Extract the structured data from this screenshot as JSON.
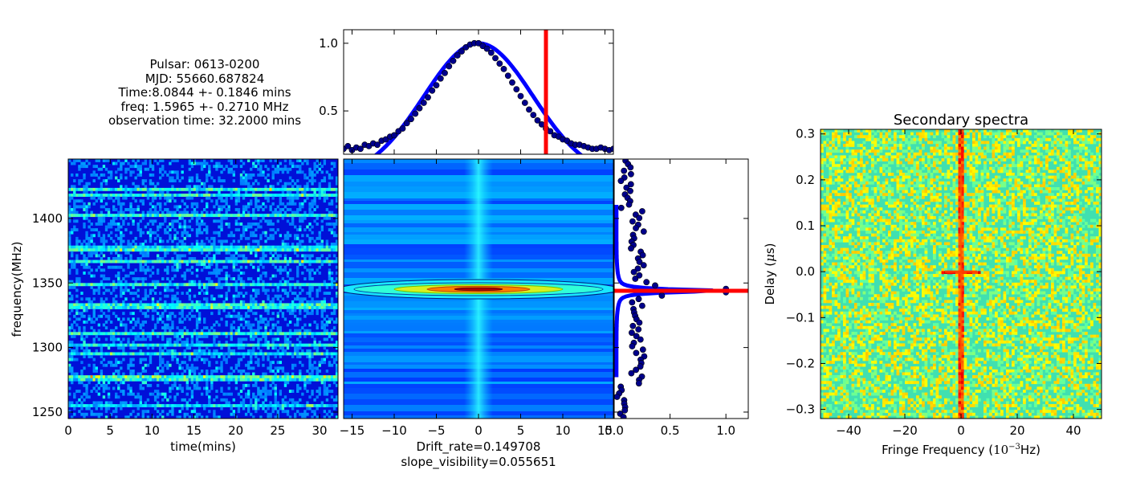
{
  "info_text": {
    "pulsar": "Pulsar: 0613-0200",
    "mjd": "MJD: 55660.687824",
    "time": "Time:8.0844 +- 0.1846 mins",
    "freq": "freq: 1.5965 +- 0.2710 MHz",
    "obs": "observation time: 32.2000 mins"
  },
  "colors": {
    "jet_dark": "#00008b",
    "jet_blue": "#0000ff",
    "jet_cyan": "#00ffff",
    "jet_yellow": "#ffff00",
    "jet_red": "#ff0000",
    "fit_line": "#0000ff",
    "marker_line": "#ff0000",
    "points": "#00008b"
  },
  "chart_data": [
    {
      "id": "dynamic-spectrum",
      "type": "heatmap",
      "xlabel": "time(mins)",
      "ylabel": "frequency(MHz)",
      "xlim": [
        0,
        32.2
      ],
      "ylim": [
        1245,
        1446
      ],
      "xticks": [
        "0",
        "5",
        "10",
        "15",
        "20",
        "25",
        "30"
      ],
      "yticks": [
        "1250",
        "1300",
        "1350",
        "1400"
      ],
      "ytick_values": [
        1250,
        1300,
        1350,
        1400
      ]
    },
    {
      "id": "acf-2d",
      "type": "heatmap",
      "xlabel": "Drift_rate=0.149708",
      "xlabel2": "slope_visibility=0.055651",
      "xlim": [
        -16,
        16
      ],
      "xticks": [
        "−15",
        "−10",
        "−5",
        "0",
        "5",
        "10",
        "15"
      ],
      "xtick_values": [
        -15,
        -10,
        -5,
        0,
        5,
        10,
        15
      ]
    },
    {
      "id": "time-acf-profile",
      "type": "scatter",
      "xlim": [
        -16,
        16
      ],
      "ylim": [
        0.18,
        1.1
      ],
      "yticks": [
        "0.5",
        "1.0"
      ],
      "ytick_values": [
        0.5,
        1.0
      ],
      "marker_x": 8.0,
      "gaussian_fit": {
        "center": 0,
        "sigma": 6.5,
        "amplitude": 1.0,
        "offset": 0.0
      },
      "series": [
        {
          "x": [
            -16,
            -15.5,
            -15,
            -14.5,
            -14,
            -13.5,
            -13,
            -12.5,
            -12,
            -11.5,
            -11,
            -10.5,
            -10,
            -9.5,
            -9,
            -8.5,
            -8,
            -7.5,
            -7,
            -6.5,
            -6,
            -5.5,
            -5,
            -4.5,
            -4,
            -3.5,
            -3,
            -2.5,
            -2,
            -1.5,
            -1,
            -0.5,
            0,
            0.5,
            1,
            1.5,
            2,
            2.5,
            3,
            3.5,
            4,
            4.5,
            5,
            5.5,
            6,
            6.5,
            7,
            7.5,
            8,
            8.5,
            9,
            9.5,
            10,
            10.5,
            11,
            11.5,
            12,
            12.5,
            13,
            13.5,
            14,
            14.5,
            15,
            15.5,
            16
          ],
          "y": [
            0.22,
            0.24,
            0.21,
            0.23,
            0.22,
            0.25,
            0.24,
            0.26,
            0.25,
            0.28,
            0.29,
            0.31,
            0.32,
            0.35,
            0.37,
            0.41,
            0.44,
            0.48,
            0.52,
            0.56,
            0.6,
            0.65,
            0.69,
            0.74,
            0.78,
            0.83,
            0.87,
            0.91,
            0.94,
            0.97,
            0.99,
            1.0,
            1.0,
            0.98,
            0.96,
            0.93,
            0.89,
            0.85,
            0.81,
            0.76,
            0.71,
            0.66,
            0.61,
            0.56,
            0.51,
            0.47,
            0.43,
            0.4,
            0.37,
            0.35,
            0.32,
            0.31,
            0.29,
            0.28,
            0.26,
            0.25,
            0.25,
            0.24,
            0.23,
            0.22,
            0.22,
            0.23,
            0.22,
            0.21,
            0.22
          ]
        }
      ]
    },
    {
      "id": "freq-acf-profile",
      "type": "scatter",
      "xlim": [
        0,
        1.2
      ],
      "xticks": [
        "0.0",
        "0.5",
        "1.0"
      ],
      "xtick_values": [
        0.0,
        0.5,
        1.0
      ],
      "marker_freq": 1345
    },
    {
      "id": "secondary-spectrum",
      "type": "heatmap",
      "title": "Secondary spectra",
      "xlabel_pre": "Fringe Frequency (",
      "xlabel_post": "Hz)",
      "xlabel_base": "10",
      "xlabel_exp": "−3",
      "ylabel_pre": "Delay (",
      "ylabel_mu": "μ",
      "ylabel_post": "s)",
      "xlim": [
        -50,
        50
      ],
      "ylim": [
        -0.32,
        0.31
      ],
      "xticks": [
        "−40",
        "−20",
        "0",
        "20",
        "40"
      ],
      "xtick_values": [
        -40,
        -20,
        0,
        20,
        40
      ],
      "yticks": [
        "0.3",
        "0.2",
        "0.1",
        "0.0",
        "−0.1",
        "−0.2",
        "−0.3"
      ],
      "ytick_values": [
        0.3,
        0.2,
        0.1,
        0.0,
        -0.1,
        -0.2,
        -0.3
      ]
    }
  ]
}
